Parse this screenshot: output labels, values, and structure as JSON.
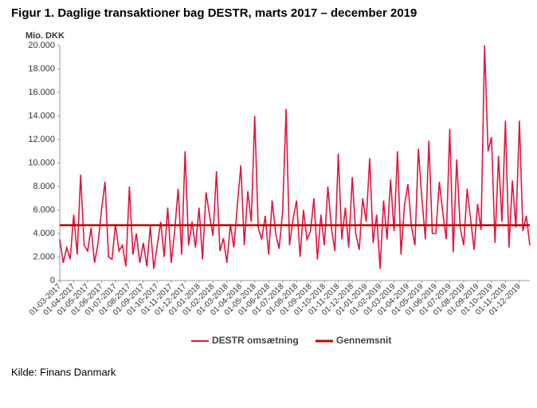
{
  "chart_data": {
    "type": "line",
    "title": "Figur 1. Daglige transaktioner bag DESTR, marts 2017 – december 2019",
    "y_label": "Mio. DKK",
    "categories": [
      "01-03-2017",
      null,
      null,
      null,
      "01-04-2017",
      null,
      null,
      null,
      "01-05-2017",
      null,
      null,
      null,
      "01-06-2017",
      null,
      null,
      null,
      "01-07-2017",
      null,
      null,
      null,
      "01-08-2017",
      null,
      null,
      null,
      "01-09-2017",
      null,
      null,
      null,
      "01-10-2017",
      null,
      null,
      null,
      "01-11-2017",
      null,
      null,
      null,
      "01-12-2017",
      null,
      null,
      null,
      "01-01-2018",
      null,
      null,
      null,
      "01-02-2018",
      null,
      null,
      null,
      "01-03-2018",
      null,
      null,
      null,
      "01-04-2018",
      null,
      null,
      null,
      "01-05-2018",
      null,
      null,
      null,
      "01-06-2018",
      null,
      null,
      null,
      "01-07-2018",
      null,
      null,
      null,
      "01-08-2018",
      null,
      null,
      null,
      "01-09-2018",
      null,
      null,
      null,
      "01-10-2018",
      null,
      null,
      null,
      "01-11-2018",
      null,
      null,
      null,
      "01-12-2018",
      null,
      null,
      null,
      "01-01-2019",
      null,
      null,
      null,
      "01-02-2019",
      null,
      null,
      null,
      "01-03-2019",
      null,
      null,
      null,
      "01-04-2019",
      null,
      null,
      null,
      "01-05-2019",
      null,
      null,
      null,
      "01-06-2019",
      null,
      null,
      null,
      "01-07-2019",
      null,
      null,
      null,
      "01-08-2019",
      null,
      null,
      null,
      "01-09-2019",
      null,
      null,
      null,
      "01-10-2019",
      null,
      null,
      null,
      "01-11-2019",
      null,
      null,
      null,
      "01-12-2019",
      null,
      null,
      null
    ],
    "series": [
      {
        "name": "DESTR omsætning",
        "color": "#e0153f",
        "values": [
          3500,
          1500,
          2800,
          1800,
          5600,
          2200,
          9000,
          3000,
          2500,
          4500,
          1500,
          3200,
          6000,
          8400,
          2000,
          1800,
          4800,
          2500,
          3000,
          1200,
          8000,
          2200,
          4000,
          1500,
          3200,
          1200,
          4600,
          1000,
          3000,
          5000,
          2000,
          6200,
          1500,
          4200,
          7800,
          2200,
          11000,
          3000,
          5000,
          2800,
          6200,
          1800,
          7500,
          5600,
          3800,
          9300,
          2500,
          3600,
          1500,
          4800,
          2800,
          6400,
          9800,
          3000,
          7600,
          5000,
          14000,
          4500,
          3500,
          5500,
          2200,
          6800,
          4000,
          2700,
          5800,
          14600,
          3000,
          5200,
          6800,
          2000,
          6000,
          3500,
          4200,
          7000,
          1800,
          5600,
          3000,
          8000,
          4500,
          2500,
          10800,
          3500,
          6200,
          2800,
          8800,
          4000,
          2600,
          7000,
          5000,
          10400,
          3200,
          5600,
          1000,
          6800,
          3500,
          8600,
          4200,
          11000,
          2200,
          6400,
          8200,
          4600,
          3000,
          11200,
          7000,
          3500,
          11900,
          4000,
          4000,
          8400,
          5800,
          3500,
          12900,
          2400,
          10300,
          4500,
          3000,
          7800,
          5200,
          2600,
          6500,
          4300,
          20000,
          11000,
          12200,
          3200,
          10600,
          5000,
          13600,
          2800,
          8500,
          4500,
          13600,
          4200,
          5500,
          3000
        ]
      }
    ],
    "average": {
      "name": "Gennemsnit",
      "color": "#c00000",
      "value": 4700
    },
    "ylim": [
      0,
      20000
    ],
    "yticks": [
      0,
      {
        "value": 2000,
        "label": "2.000"
      },
      {
        "value": 4000,
        "label": "4.000"
      },
      {
        "value": 6000,
        "label": "6.000"
      },
      {
        "value": 8000,
        "label": "8.000"
      },
      {
        "value": 10000,
        "label": "10.000"
      },
      {
        "value": 12000,
        "label": "12.000"
      },
      {
        "value": 14000,
        "label": "14.000"
      },
      {
        "value": 16000,
        "label": "16.000"
      },
      {
        "value": 18000,
        "label": "18.000"
      },
      {
        "value": 20000,
        "label": "20.000"
      }
    ]
  },
  "source": "Kilde: Finans Danmark"
}
